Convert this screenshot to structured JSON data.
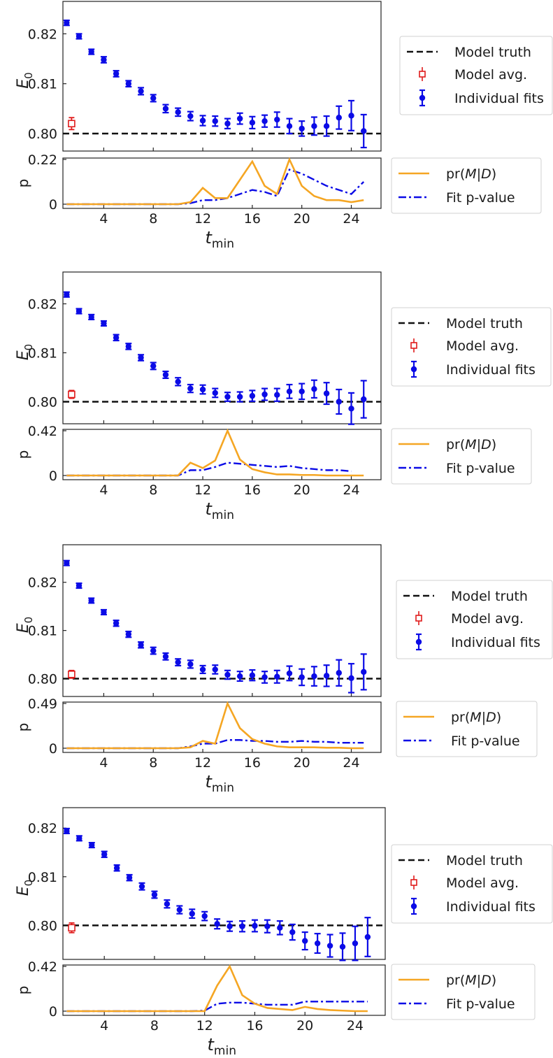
{
  "colors": {
    "data": "#0b0be6",
    "model_avg": "#e01b1b",
    "truth": "#111111",
    "prob": "#f5a623",
    "pvalue": "#0b0be6"
  },
  "chart_data": [
    {
      "type": "scatter",
      "ylabel": "E",
      "ylabel_sub": "0",
      "ylim": [
        0.7965,
        0.8265
      ],
      "yticks": [
        0.8,
        0.81,
        0.82
      ],
      "ytick_labels": [
        "0.80",
        "0.81",
        "0.82"
      ],
      "xlim": [
        0.7,
        26.4
      ],
      "truth": 0.8,
      "model_avg": {
        "x": 1.4,
        "y": 0.802,
        "err": 0.0012
      },
      "series": [
        {
          "name": "Individual fits",
          "x": [
            1,
            2,
            3,
            4,
            5,
            6,
            7,
            8,
            9,
            10,
            11,
            12,
            13,
            14,
            15,
            16,
            17,
            18,
            19,
            20,
            21,
            22,
            23,
            24,
            25
          ],
          "y": [
            0.8222,
            0.8195,
            0.8164,
            0.8148,
            0.812,
            0.81,
            0.8085,
            0.8071,
            0.805,
            0.8043,
            0.8035,
            0.8026,
            0.8025,
            0.802,
            0.803,
            0.8022,
            0.8025,
            0.8028,
            0.8015,
            0.801,
            0.8015,
            0.8015,
            0.8032,
            0.8036,
            0.8005
          ],
          "err": [
            0.0005,
            0.0005,
            0.0005,
            0.0006,
            0.0006,
            0.0006,
            0.0007,
            0.0007,
            0.0008,
            0.0008,
            0.0009,
            0.001,
            0.001,
            0.001,
            0.0011,
            0.0012,
            0.0012,
            0.0015,
            0.0015,
            0.0015,
            0.0018,
            0.002,
            0.0023,
            0.003,
            0.0033
          ]
        }
      ],
      "legend": {
        "truth": "Model truth",
        "avg": "Model avg.",
        "fits": "Individual fits"
      },
      "sub": {
        "ylabel": "p",
        "ymax": 0.22,
        "ymax_label": "0.22",
        "ymin_label": "0",
        "xticks": [
          4,
          8,
          12,
          16,
          20,
          24
        ],
        "xtick_labels": [
          "4",
          "8",
          "12",
          "16",
          "20",
          "24"
        ],
        "xlabel": "t",
        "xlabel_sub": "min",
        "series": [
          {
            "name": "pr(M|D)",
            "x": [
              1,
              2,
              3,
              4,
              5,
              6,
              7,
              8,
              9,
              10,
              11,
              12,
              13,
              14,
              15,
              16,
              17,
              18,
              19,
              20,
              21,
              22,
              23,
              24,
              25
            ],
            "values": [
              0,
              0,
              0,
              0,
              0,
              0,
              0,
              0,
              0,
              0,
              0.01,
              0.08,
              0.03,
              0.03,
              0.12,
              0.21,
              0.09,
              0.05,
              0.22,
              0.09,
              0.04,
              0.02,
              0.02,
              0.01,
              0.02
            ]
          },
          {
            "name": "Fit p-value",
            "x": [
              1,
              2,
              3,
              4,
              5,
              6,
              7,
              8,
              9,
              10,
              11,
              12,
              13,
              14,
              15,
              16,
              17,
              18,
              19,
              20,
              21,
              22,
              23,
              24,
              25
            ],
            "values": [
              0,
              0,
              0,
              0,
              0,
              0,
              0,
              0,
              0,
              0,
              0.005,
              0.02,
              0.02,
              0.03,
              0.05,
              0.07,
              0.06,
              0.04,
              0.17,
              0.15,
              0.12,
              0.09,
              0.07,
              0.05,
              0.11
            ]
          }
        ],
        "legend": {
          "prob_pre": "pr(",
          "prob_mid": "M",
          "prob_bar": "|",
          "prob_d": "D",
          "prob_post": ")",
          "pvalue": "Fit p-value"
        }
      }
    },
    {
      "type": "scatter",
      "ylabel": "E",
      "ylabel_sub": "0",
      "ylim": [
        0.7955,
        0.8265
      ],
      "yticks": [
        0.8,
        0.81,
        0.82
      ],
      "ytick_labels": [
        "0.80",
        "0.81",
        "0.82"
      ],
      "xlim": [
        0.7,
        26.4
      ],
      "truth": 0.8,
      "model_avg": {
        "x": 1.4,
        "y": 0.8015,
        "err": 0.0008
      },
      "series": [
        {
          "name": "Individual fits",
          "x": [
            1,
            2,
            3,
            4,
            5,
            6,
            7,
            8,
            9,
            10,
            11,
            12,
            13,
            14,
            15,
            16,
            17,
            18,
            19,
            20,
            21,
            22,
            23,
            24,
            25
          ],
          "y": [
            0.8219,
            0.8185,
            0.8173,
            0.816,
            0.8131,
            0.8113,
            0.809,
            0.8073,
            0.8055,
            0.8041,
            0.8027,
            0.8025,
            0.8018,
            0.801,
            0.801,
            0.8012,
            0.8015,
            0.8014,
            0.8021,
            0.8021,
            0.8026,
            0.8017,
            0.8,
            0.7986,
            0.8005
          ],
          "err": [
            0.0005,
            0.0005,
            0.0005,
            0.0005,
            0.0006,
            0.0006,
            0.0006,
            0.0007,
            0.0007,
            0.0008,
            0.0008,
            0.0009,
            0.0009,
            0.0009,
            0.001,
            0.0011,
            0.0012,
            0.0013,
            0.0014,
            0.0016,
            0.0018,
            0.0022,
            0.0025,
            0.0032,
            0.0038
          ]
        }
      ],
      "legend": {
        "truth": "Model truth",
        "avg": "Model avg.",
        "fits": "Individual fits"
      },
      "sub": {
        "ylabel": "p",
        "ymax": 0.42,
        "ymax_label": "0.42",
        "ymin_label": "0",
        "xticks": [
          4,
          8,
          12,
          16,
          20,
          24
        ],
        "xtick_labels": [
          "4",
          "8",
          "12",
          "16",
          "20",
          "24"
        ],
        "xlabel": "t",
        "xlabel_sub": "min",
        "series": [
          {
            "name": "pr(M|D)",
            "x": [
              1,
              2,
              3,
              4,
              5,
              6,
              7,
              8,
              9,
              10,
              11,
              12,
              13,
              14,
              15,
              16,
              17,
              18,
              19,
              20,
              21,
              22,
              23,
              24,
              25
            ],
            "values": [
              0,
              0,
              0,
              0,
              0,
              0,
              0,
              0,
              0,
              0,
              0.12,
              0.07,
              0.14,
              0.42,
              0.15,
              0.06,
              0.03,
              0.01,
              0.01,
              0.005,
              0.005,
              0,
              0,
              0,
              0
            ]
          },
          {
            "name": "Fit p-value",
            "x": [
              1,
              2,
              3,
              4,
              5,
              6,
              7,
              8,
              9,
              10,
              11,
              12,
              13,
              14,
              15,
              16,
              17,
              18,
              19,
              20,
              21,
              22,
              23,
              24
            ],
            "values": [
              0,
              0,
              0,
              0,
              0,
              0,
              0,
              0,
              0,
              0,
              0.05,
              0.05,
              0.08,
              0.12,
              0.11,
              0.1,
              0.09,
              0.08,
              0.09,
              0.07,
              0.06,
              0.05,
              0.05,
              0.04
            ]
          }
        ],
        "legend": {
          "prob_pre": "pr(",
          "prob_mid": "M",
          "prob_bar": "|",
          "prob_d": "D",
          "prob_post": ")",
          "pvalue": "Fit p-value"
        }
      }
    },
    {
      "type": "scatter",
      "ylabel": "E",
      "ylabel_sub": "0",
      "ylim": [
        0.7963,
        0.8278
      ],
      "yticks": [
        0.8,
        0.81,
        0.82
      ],
      "ytick_labels": [
        "0.80",
        "0.81",
        "0.82"
      ],
      "xlim": [
        0.7,
        26.4
      ],
      "truth": 0.8,
      "model_avg": {
        "x": 1.4,
        "y": 0.8009,
        "err": 0.0008
      },
      "series": [
        {
          "name": "Individual fits",
          "x": [
            1,
            2,
            3,
            4,
            5,
            6,
            7,
            8,
            9,
            10,
            11,
            12,
            13,
            14,
            15,
            16,
            17,
            18,
            19,
            20,
            21,
            22,
            23,
            24,
            25
          ],
          "y": [
            0.824,
            0.8193,
            0.8162,
            0.8138,
            0.8115,
            0.8092,
            0.807,
            0.8058,
            0.8046,
            0.8034,
            0.803,
            0.8019,
            0.8019,
            0.8008,
            0.8005,
            0.8007,
            0.8003,
            0.8004,
            0.8011,
            0.8003,
            0.8005,
            0.8006,
            0.8012,
            0.8001,
            0.8014
          ],
          "err": [
            0.0005,
            0.0005,
            0.0005,
            0.0005,
            0.0006,
            0.0006,
            0.0006,
            0.0007,
            0.0007,
            0.0007,
            0.0008,
            0.0008,
            0.0009,
            0.0009,
            0.001,
            0.0011,
            0.0012,
            0.0013,
            0.0015,
            0.0017,
            0.002,
            0.0022,
            0.0027,
            0.003,
            0.0037
          ]
        }
      ],
      "legend": {
        "truth": "Model truth",
        "avg": "Model avg.",
        "fits": "Individual fits"
      },
      "sub": {
        "ylabel": "p",
        "ymax": 0.49,
        "ymax_label": "0.49",
        "ymin_label": "0",
        "xticks": [
          4,
          8,
          12,
          16,
          20,
          24
        ],
        "xtick_labels": [
          "4",
          "8",
          "12",
          "16",
          "20",
          "24"
        ],
        "xlabel": "t",
        "xlabel_sub": "min",
        "series": [
          {
            "name": "pr(M|D)",
            "x": [
              1,
              2,
              3,
              4,
              5,
              6,
              7,
              8,
              9,
              10,
              11,
              12,
              13,
              14,
              15,
              16,
              17,
              18,
              19,
              20,
              21,
              22,
              23,
              24,
              25
            ],
            "values": [
              0,
              0,
              0,
              0,
              0,
              0,
              0,
              0,
              0,
              0,
              0.01,
              0.08,
              0.05,
              0.49,
              0.22,
              0.1,
              0.05,
              0.02,
              0.01,
              0.01,
              0.01,
              0.005,
              0.005,
              0,
              0
            ]
          },
          {
            "name": "Fit p-value",
            "x": [
              1,
              2,
              3,
              4,
              5,
              6,
              7,
              8,
              9,
              10,
              11,
              12,
              13,
              14,
              15,
              16,
              17,
              18,
              19,
              20,
              21,
              22,
              23,
              24,
              25
            ],
            "values": [
              0,
              0,
              0,
              0,
              0,
              0,
              0,
              0,
              0,
              0,
              0.02,
              0.05,
              0.05,
              0.09,
              0.09,
              0.08,
              0.08,
              0.07,
              0.07,
              0.08,
              0.07,
              0.07,
              0.06,
              0.06,
              0.06
            ]
          }
        ],
        "legend": {
          "prob_pre": "pr(",
          "prob_mid": "M",
          "prob_bar": "|",
          "prob_d": "D",
          "prob_post": ")",
          "pvalue": "Fit p-value"
        }
      }
    },
    {
      "type": "scatter",
      "ylabel": "E",
      "ylabel_sub": "0",
      "ylim": [
        0.793,
        0.8242
      ],
      "yticks": [
        0.8,
        0.81,
        0.82
      ],
      "ytick_labels": [
        "0.80",
        "0.81",
        "0.82"
      ],
      "xlim": [
        0.7,
        26.4
      ],
      "truth": 0.8,
      "model_avg": {
        "x": 1.4,
        "y": 0.7995,
        "err": 0.001
      },
      "series": [
        {
          "name": "Individual fits",
          "x": [
            1,
            2,
            3,
            4,
            5,
            6,
            7,
            8,
            9,
            10,
            11,
            12,
            13,
            14,
            15,
            16,
            17,
            18,
            19,
            20,
            21,
            22,
            23,
            24,
            25
          ],
          "y": [
            0.8194,
            0.8179,
            0.8165,
            0.8146,
            0.8118,
            0.8098,
            0.808,
            0.8063,
            0.8044,
            0.8032,
            0.8024,
            0.8019,
            0.8003,
            0.7998,
            0.7998,
            0.7999,
            0.7998,
            0.7995,
            0.7986,
            0.7968,
            0.7963,
            0.7958,
            0.7956,
            0.7963,
            0.7976
          ],
          "err": [
            0.0005,
            0.0005,
            0.0005,
            0.0006,
            0.0006,
            0.0006,
            0.0007,
            0.0007,
            0.0008,
            0.0008,
            0.0009,
            0.0009,
            0.001,
            0.001,
            0.0011,
            0.0012,
            0.0013,
            0.0014,
            0.0016,
            0.0018,
            0.002,
            0.0023,
            0.0028,
            0.0035,
            0.004
          ]
        }
      ],
      "legend": {
        "truth": "Model truth",
        "avg": "Model avg.",
        "fits": "Individual fits"
      },
      "sub": {
        "ylabel": "p",
        "ymax": 0.42,
        "ymax_label": "0.42",
        "ymin_label": "0",
        "xticks": [
          4,
          8,
          12,
          16,
          20,
          24
        ],
        "xtick_labels": [
          "4",
          "8",
          "12",
          "16",
          "20",
          "24"
        ],
        "xlabel": "t",
        "xlabel_sub": "min",
        "series": [
          {
            "name": "pr(M|D)",
            "x": [
              1,
              2,
              3,
              4,
              5,
              6,
              7,
              8,
              9,
              10,
              11,
              12,
              13,
              14,
              15,
              16,
              17,
              18,
              19,
              20,
              21,
              22,
              23,
              24,
              25
            ],
            "values": [
              0,
              0,
              0,
              0,
              0,
              0,
              0,
              0,
              0,
              0,
              0,
              0,
              0.24,
              0.42,
              0.15,
              0.07,
              0.03,
              0.02,
              0.01,
              0.04,
              0.02,
              0.01,
              0.005,
              0,
              0
            ]
          },
          {
            "name": "Fit p-value",
            "x": [
              1,
              2,
              3,
              4,
              5,
              6,
              7,
              8,
              9,
              10,
              11,
              12,
              13,
              14,
              15,
              16,
              17,
              18,
              19,
              20,
              21,
              22,
              23,
              24,
              25
            ],
            "values": [
              0,
              0,
              0,
              0,
              0,
              0,
              0,
              0,
              0,
              0,
              0,
              0.005,
              0.07,
              0.08,
              0.08,
              0.07,
              0.06,
              0.06,
              0.06,
              0.09,
              0.09,
              0.09,
              0.09,
              0.09,
              0.09
            ]
          }
        ],
        "legend": {
          "prob_pre": "pr(",
          "prob_mid": "M",
          "prob_bar": "|",
          "prob_d": "D",
          "prob_post": ")",
          "pvalue": "Fit p-value"
        }
      }
    }
  ]
}
